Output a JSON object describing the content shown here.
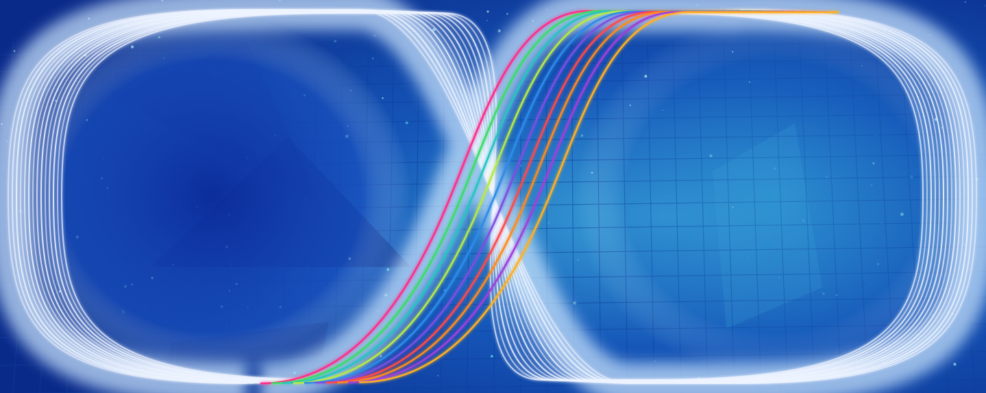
{
  "image": {
    "subject": "infinity-loop-light-streaks",
    "palette": {
      "background_deep": "#0a2a8a",
      "background_mid": "#1556b8",
      "background_light": "#3ba6d8",
      "grid_line": "#0d3f9c",
      "glow": "#cfe8ff",
      "white_streak": "#eef4ff"
    },
    "white_strands": 14,
    "colored_strands": [
      {
        "name": "magenta",
        "color": "#ff2d8a"
      },
      {
        "name": "green",
        "color": "#3ddc6a"
      },
      {
        "name": "teal",
        "color": "#27c4c0"
      },
      {
        "name": "lime",
        "color": "#b6e84a"
      },
      {
        "name": "blue",
        "color": "#2f8be8"
      },
      {
        "name": "purple",
        "color": "#7b4fe0"
      },
      {
        "name": "red",
        "color": "#ff4a4a"
      },
      {
        "name": "orange",
        "color": "#ff8a1e"
      },
      {
        "name": "violet",
        "color": "#a040d8"
      },
      {
        "name": "amber",
        "color": "#ffb020"
      }
    ]
  }
}
